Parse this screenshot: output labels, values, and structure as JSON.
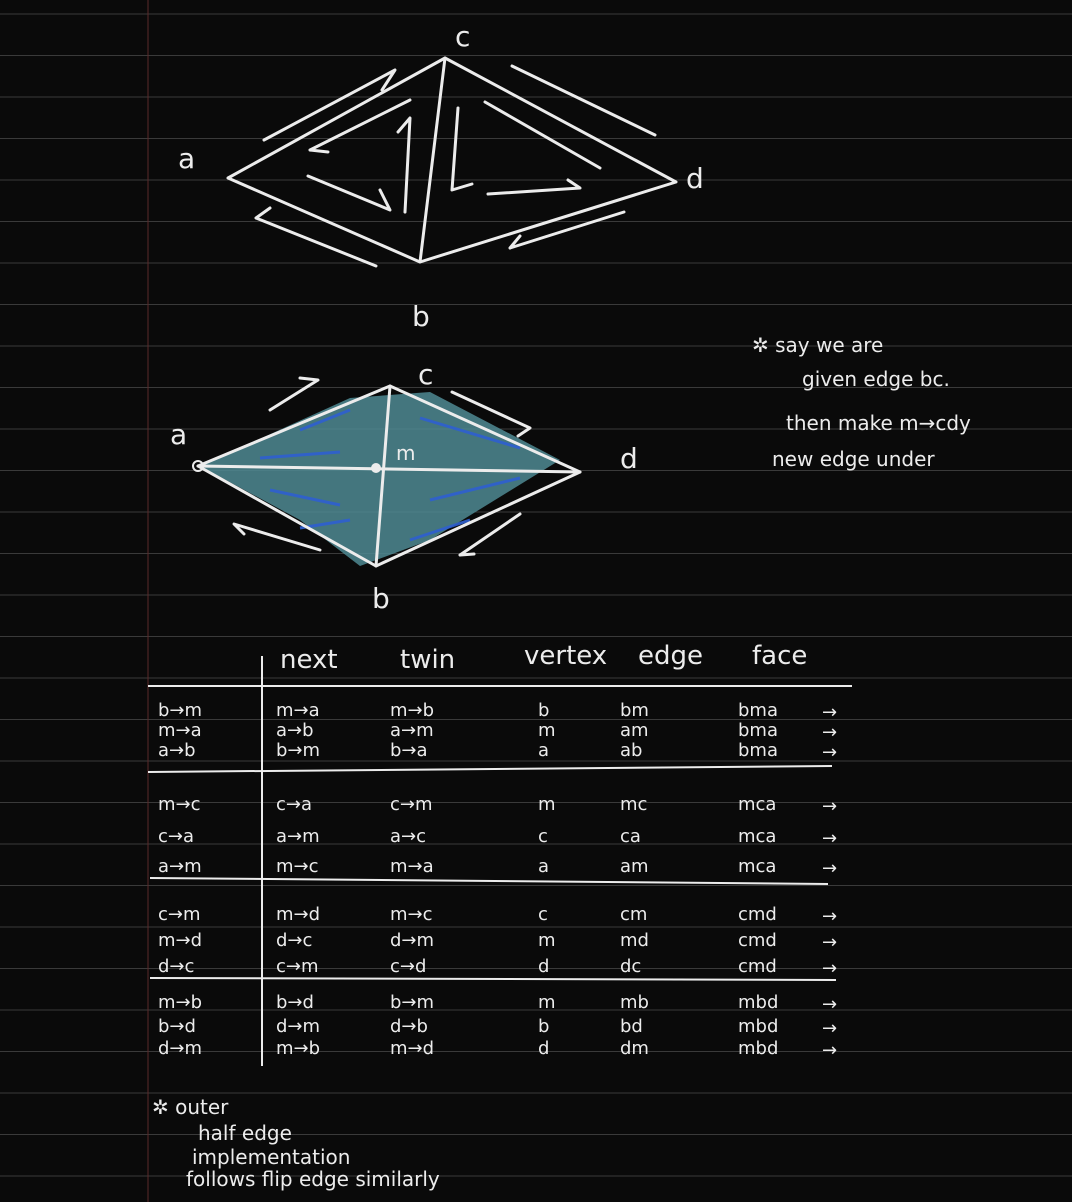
{
  "diagram1": {
    "labels": {
      "a": "a",
      "b": "b",
      "c": "c",
      "d": "d"
    }
  },
  "diagram2": {
    "labels": {
      "a": "a",
      "b": "b",
      "c": "c",
      "d": "d",
      "m": "m"
    }
  },
  "note": {
    "lines": [
      "✲ say we are",
      "given edge bc.",
      "then make m→cdy",
      "new edge under"
    ]
  },
  "table": {
    "headers": [
      "next",
      "twin",
      "vertex",
      "edge",
      "face"
    ],
    "groups": [
      {
        "rows": [
          {
            "he": "b→m",
            "next": "m→a",
            "twin": "m→b",
            "vertex": "b",
            "edge": "bm",
            "face": "bma"
          },
          {
            "he": "m→a",
            "next": "a→b",
            "twin": "a→m",
            "vertex": "m",
            "edge": "am",
            "face": "bma"
          },
          {
            "he": "a→b",
            "next": "b→m",
            "twin": "b→a",
            "vertex": "a",
            "edge": "ab",
            "face": "bma"
          }
        ]
      },
      {
        "rows": [
          {
            "he": "m→c",
            "next": "c→a",
            "twin": "c→m",
            "vertex": "m",
            "edge": "mc",
            "face": "mca"
          },
          {
            "he": "c→a",
            "next": "a→m",
            "twin": "a→c",
            "vertex": "c",
            "edge": "ca",
            "face": "mca"
          },
          {
            "he": "a→m",
            "next": "m→c",
            "twin": "m→a",
            "vertex": "a",
            "edge": "am",
            "face": "mca"
          }
        ]
      },
      {
        "rows": [
          {
            "he": "c→m",
            "next": "m→d",
            "twin": "m→c",
            "vertex": "c",
            "edge": "cm",
            "face": "cmd"
          },
          {
            "he": "m→d",
            "next": "d→c",
            "twin": "d→m",
            "vertex": "m",
            "edge": "md",
            "face": "cmd"
          },
          {
            "he": "d→c",
            "next": "c→m",
            "twin": "c→d",
            "vertex": "d",
            "edge": "dc",
            "face": "cmd"
          }
        ]
      },
      {
        "rows": [
          {
            "he": "m→b",
            "next": "b→d",
            "twin": "b→m",
            "vertex": "m",
            "edge": "mb",
            "face": "mbd"
          },
          {
            "he": "b→d",
            "next": "d→m",
            "twin": "d→b",
            "vertex": "b",
            "edge": "bd",
            "face": "mbd"
          },
          {
            "he": "d→m",
            "next": "m→b",
            "twin": "m→d",
            "vertex": "d",
            "edge": "dm",
            "face": "mbd"
          }
        ]
      }
    ],
    "arrow": "→"
  },
  "footnote": {
    "lines": [
      "✲ outer",
      "half edge",
      "implementation",
      "follows   flip edge similarly"
    ]
  },
  "colors": {
    "background": "#0a0a0a",
    "rule_line": "#3a3a3a",
    "ink": "#ececec",
    "margin_line": "#5a2a2a",
    "highlight_teal": "#4f8a93",
    "highlight_blue": "#2f5fd0"
  }
}
